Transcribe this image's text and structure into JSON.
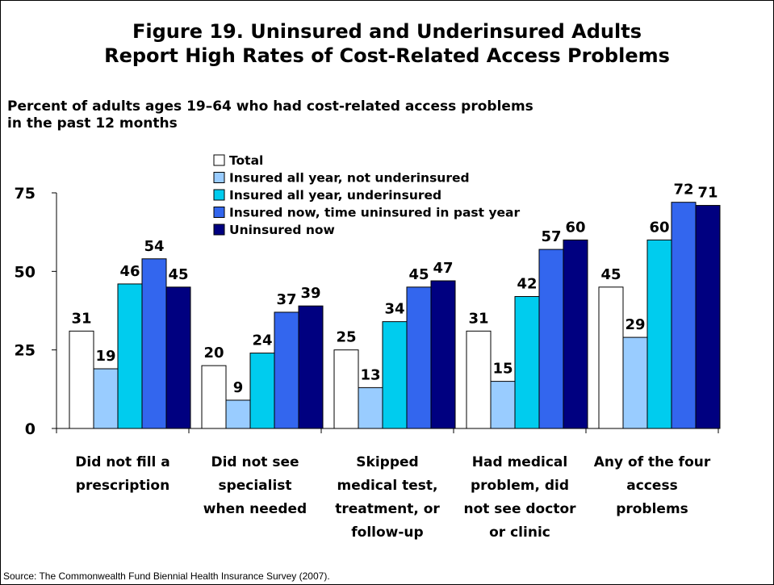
{
  "title_line1": "Figure 19. Uninsured and Underinsured Adults",
  "title_line2": "Report High Rates of Cost-Related Access Problems",
  "subtitle_line1": "Percent of adults ages 19–64 who had cost-related access problems",
  "subtitle_line2": "in the past 12 months",
  "source": "Source: The Commonwealth Fund Biennial Health Insurance Survey (2007).",
  "colors": {
    "Total": "#ffffff",
    "Insured all year, not underinsured": "#99ccff",
    "Insured all year, underinsured": "#00ccee",
    "Insured now, time uninsured in past year": "#3366ee",
    "Uninsured now": "#000080"
  },
  "chart_data": {
    "type": "bar",
    "ylim": [
      0,
      75
    ],
    "yticks": [
      0,
      25,
      50,
      75
    ],
    "legend_position": "top-center",
    "categories": [
      [
        "Did not fill a",
        "prescription"
      ],
      [
        "Did not see",
        "specialist",
        "when needed"
      ],
      [
        "Skipped",
        "medical test,",
        "treatment, or",
        "follow-up"
      ],
      [
        "Had medical",
        "problem, did",
        "not see doctor",
        "or clinic"
      ],
      [
        "Any of the four",
        "access",
        "problems"
      ]
    ],
    "series": [
      {
        "name": "Total",
        "values": [
          31,
          20,
          25,
          31,
          45
        ]
      },
      {
        "name": "Insured all year, not underinsured",
        "values": [
          19,
          9,
          13,
          15,
          29
        ]
      },
      {
        "name": "Insured all year, underinsured",
        "values": [
          46,
          24,
          34,
          42,
          60
        ]
      },
      {
        "name": "Insured now, time uninsured in past year",
        "values": [
          54,
          37,
          45,
          57,
          72
        ]
      },
      {
        "name": "Uninsured now",
        "values": [
          45,
          39,
          47,
          60,
          71
        ]
      }
    ]
  }
}
